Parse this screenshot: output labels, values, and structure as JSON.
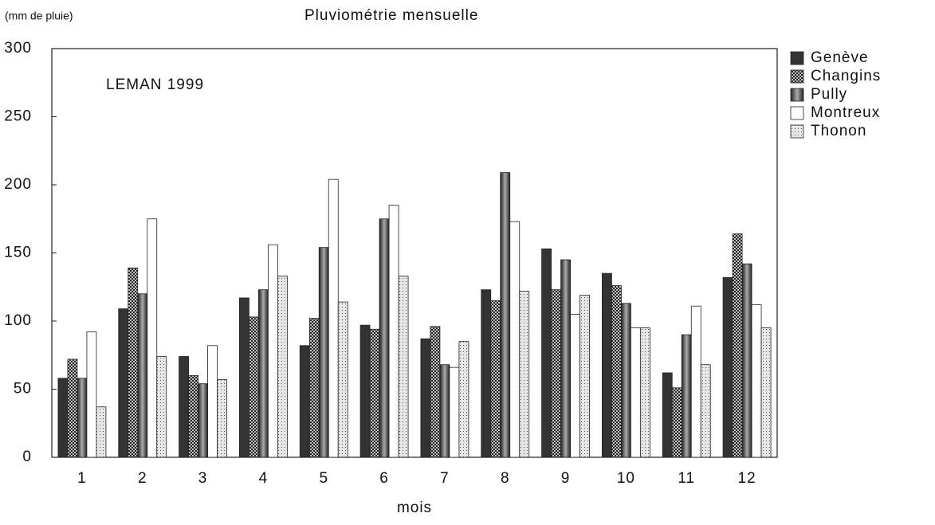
{
  "chart_data": {
    "type": "bar",
    "title": "Pluviométrie mensuelle",
    "y_label": "(mm de pluie)",
    "x_label": "mois",
    "annotation": "LEMAN 1999",
    "categories": [
      "1",
      "2",
      "3",
      "4",
      "5",
      "6",
      "7",
      "8",
      "9",
      "10",
      "11",
      "12"
    ],
    "series": [
      {
        "name": "Genève",
        "color": "#333333",
        "values": [
          58,
          109,
          74,
          117,
          82,
          97,
          87,
          123,
          153,
          135,
          62,
          132
        ]
      },
      {
        "name": "Changins",
        "color": "#ffffff",
        "values": [
          72,
          139,
          60,
          103,
          102,
          94,
          96,
          115,
          123,
          126,
          51,
          164
        ]
      },
      {
        "name": "Pully",
        "color": "#aaaaaa",
        "values": [
          58,
          120,
          54,
          123,
          154,
          175,
          68,
          209,
          145,
          113,
          90,
          142
        ]
      },
      {
        "name": "Montreux",
        "color": "#ffffff",
        "values": [
          92,
          175,
          82,
          156,
          204,
          185,
          66,
          173,
          105,
          95,
          111,
          112
        ]
      },
      {
        "name": "Thonon",
        "color": "#e6e6e6",
        "values": [
          37,
          74,
          57,
          133,
          114,
          133,
          85,
          122,
          119,
          95,
          68,
          95
        ]
      }
    ],
    "ylim": [
      0,
      300
    ],
    "yticks": [
      0,
      50,
      100,
      150,
      200,
      250,
      300
    ],
    "legend": "right"
  }
}
